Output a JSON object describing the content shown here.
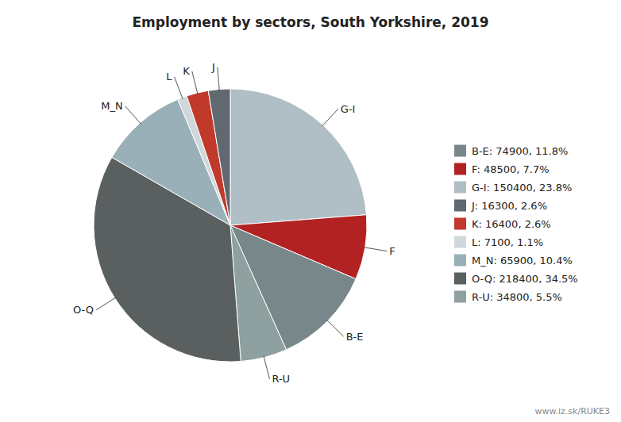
{
  "chart_data": {
    "type": "pie",
    "title": "Employment by sectors, South Yorkshire, 2019",
    "categories": [
      "G-I",
      "F",
      "B-E",
      "R-U",
      "O-Q",
      "M_N",
      "L",
      "K",
      "J"
    ],
    "values": [
      150400,
      48500,
      74900,
      34800,
      218400,
      65900,
      7100,
      16400,
      16300
    ],
    "colors": [
      "#b0bec5",
      "#b22222",
      "#78888a",
      "#8fa0a0",
      "#5a6060",
      "#9ab0b8",
      "#d0d8dc",
      "#c0392b",
      "#606870"
    ],
    "legend": "right",
    "legend_entries": [
      {
        "label": "B-E: 74900, 11.8%",
        "color": "#78888a"
      },
      {
        "label": "F: 48500, 7.7%",
        "color": "#b22222"
      },
      {
        "label": "G-I: 150400, 23.8%",
        "color": "#b0bec5"
      },
      {
        "label": "J: 16300, 2.6%",
        "color": "#606870"
      },
      {
        "label": "K: 16400, 2.6%",
        "color": "#c0392b"
      },
      {
        "label": "L: 7100, 1.1%",
        "color": "#d0d8dc"
      },
      {
        "label": "M_N: 65900, 10.4%",
        "color": "#9ab0b8"
      },
      {
        "label": "O-Q: 218400, 34.5%",
        "color": "#5a6060"
      },
      {
        "label": "R-U: 34800, 5.5%",
        "color": "#8fa0a0"
      }
    ],
    "annotations": [
      "www.iz.sk/RUKE3"
    ]
  }
}
